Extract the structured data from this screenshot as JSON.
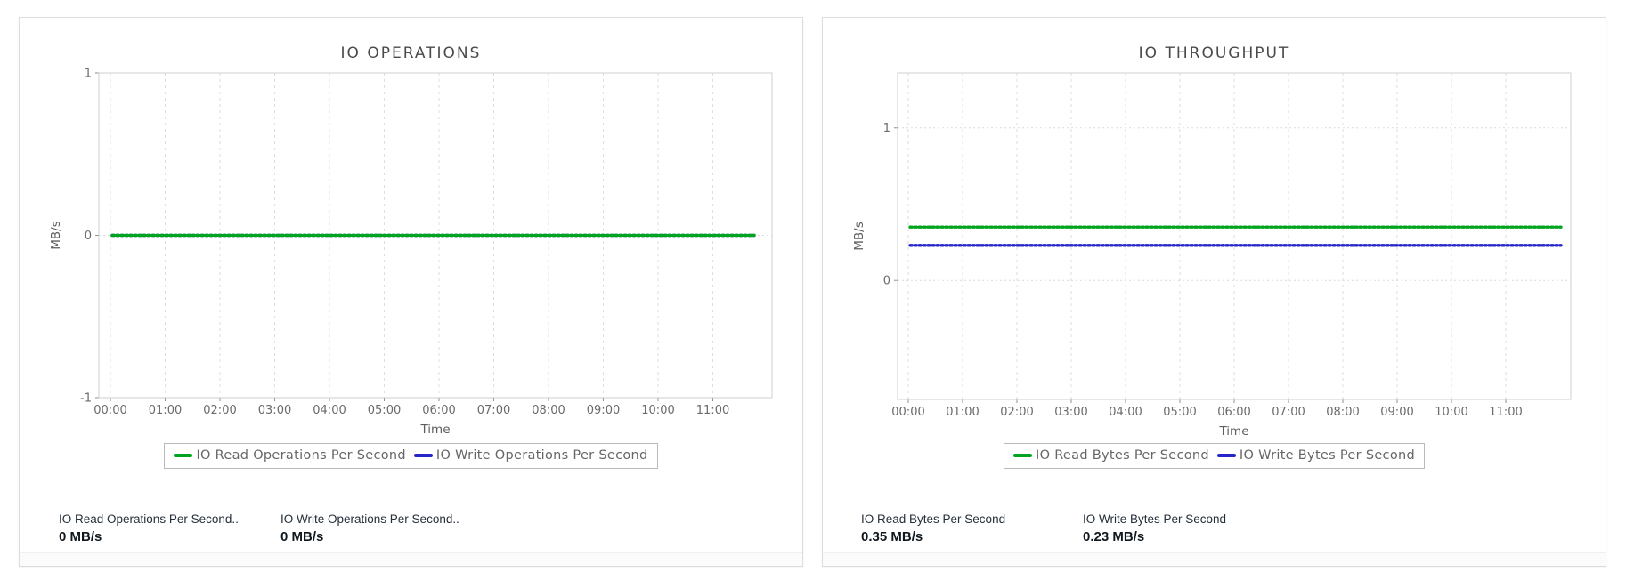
{
  "panels": [
    {
      "name": "io-operations",
      "stats": [
        {
          "label": "IO Read Operations Per Second..",
          "value": "0 MB/s"
        },
        {
          "label": "IO Write Operations Per Second..",
          "value": "0 MB/s"
        }
      ]
    },
    {
      "name": "io-throughput",
      "stats": [
        {
          "label": "IO Read Bytes Per Second",
          "value": "0.35 MB/s"
        },
        {
          "label": "IO Write Bytes Per Second",
          "value": "0.23 MB/s"
        }
      ]
    }
  ],
  "chart_data": [
    {
      "type": "line",
      "title": "IO OPERATIONS",
      "xlabel": "Time",
      "ylabel": "MB/s",
      "x_ticks": [
        "00:00",
        "01:00",
        "02:00",
        "03:00",
        "04:00",
        "05:00",
        "06:00",
        "07:00",
        "08:00",
        "09:00",
        "10:00",
        "11:00"
      ],
      "x_range": [
        "00:00",
        "11:45"
      ],
      "y_ticks": [
        1,
        0,
        -1
      ],
      "ylim": [
        -1,
        1
      ],
      "grid": true,
      "legend_position": "bottom",
      "line_style": "dotted",
      "series": [
        {
          "name": "IO Read Operations Per Second",
          "color": "#00a41e",
          "value": 0,
          "unit": "MB/s",
          "shape": "constant"
        },
        {
          "name": "IO Write Operations Per Second",
          "color": "#2626c9",
          "value": 0,
          "unit": "MB/s",
          "shape": "constant"
        }
      ]
    },
    {
      "type": "line",
      "title": "IO THROUGHPUT",
      "xlabel": "Time",
      "ylabel": "MB/s",
      "x_ticks": [
        "00:00",
        "01:00",
        "02:00",
        "03:00",
        "04:00",
        "05:00",
        "06:00",
        "07:00",
        "08:00",
        "09:00",
        "10:00",
        "11:00"
      ],
      "x_range": [
        "00:00",
        "11:45"
      ],
      "y_ticks": [
        1,
        0
      ],
      "ylim": [
        -0.78,
        1.36
      ],
      "grid": true,
      "legend_position": "bottom",
      "line_style": "dotted",
      "series": [
        {
          "name": "IO Read Bytes Per Second",
          "color": "#00a41e",
          "value": 0.35,
          "unit": "MB/s",
          "shape": "constant"
        },
        {
          "name": "IO Write Bytes Per Second",
          "color": "#2626c9",
          "value": 0.23,
          "unit": "MB/s",
          "shape": "constant"
        }
      ]
    }
  ]
}
